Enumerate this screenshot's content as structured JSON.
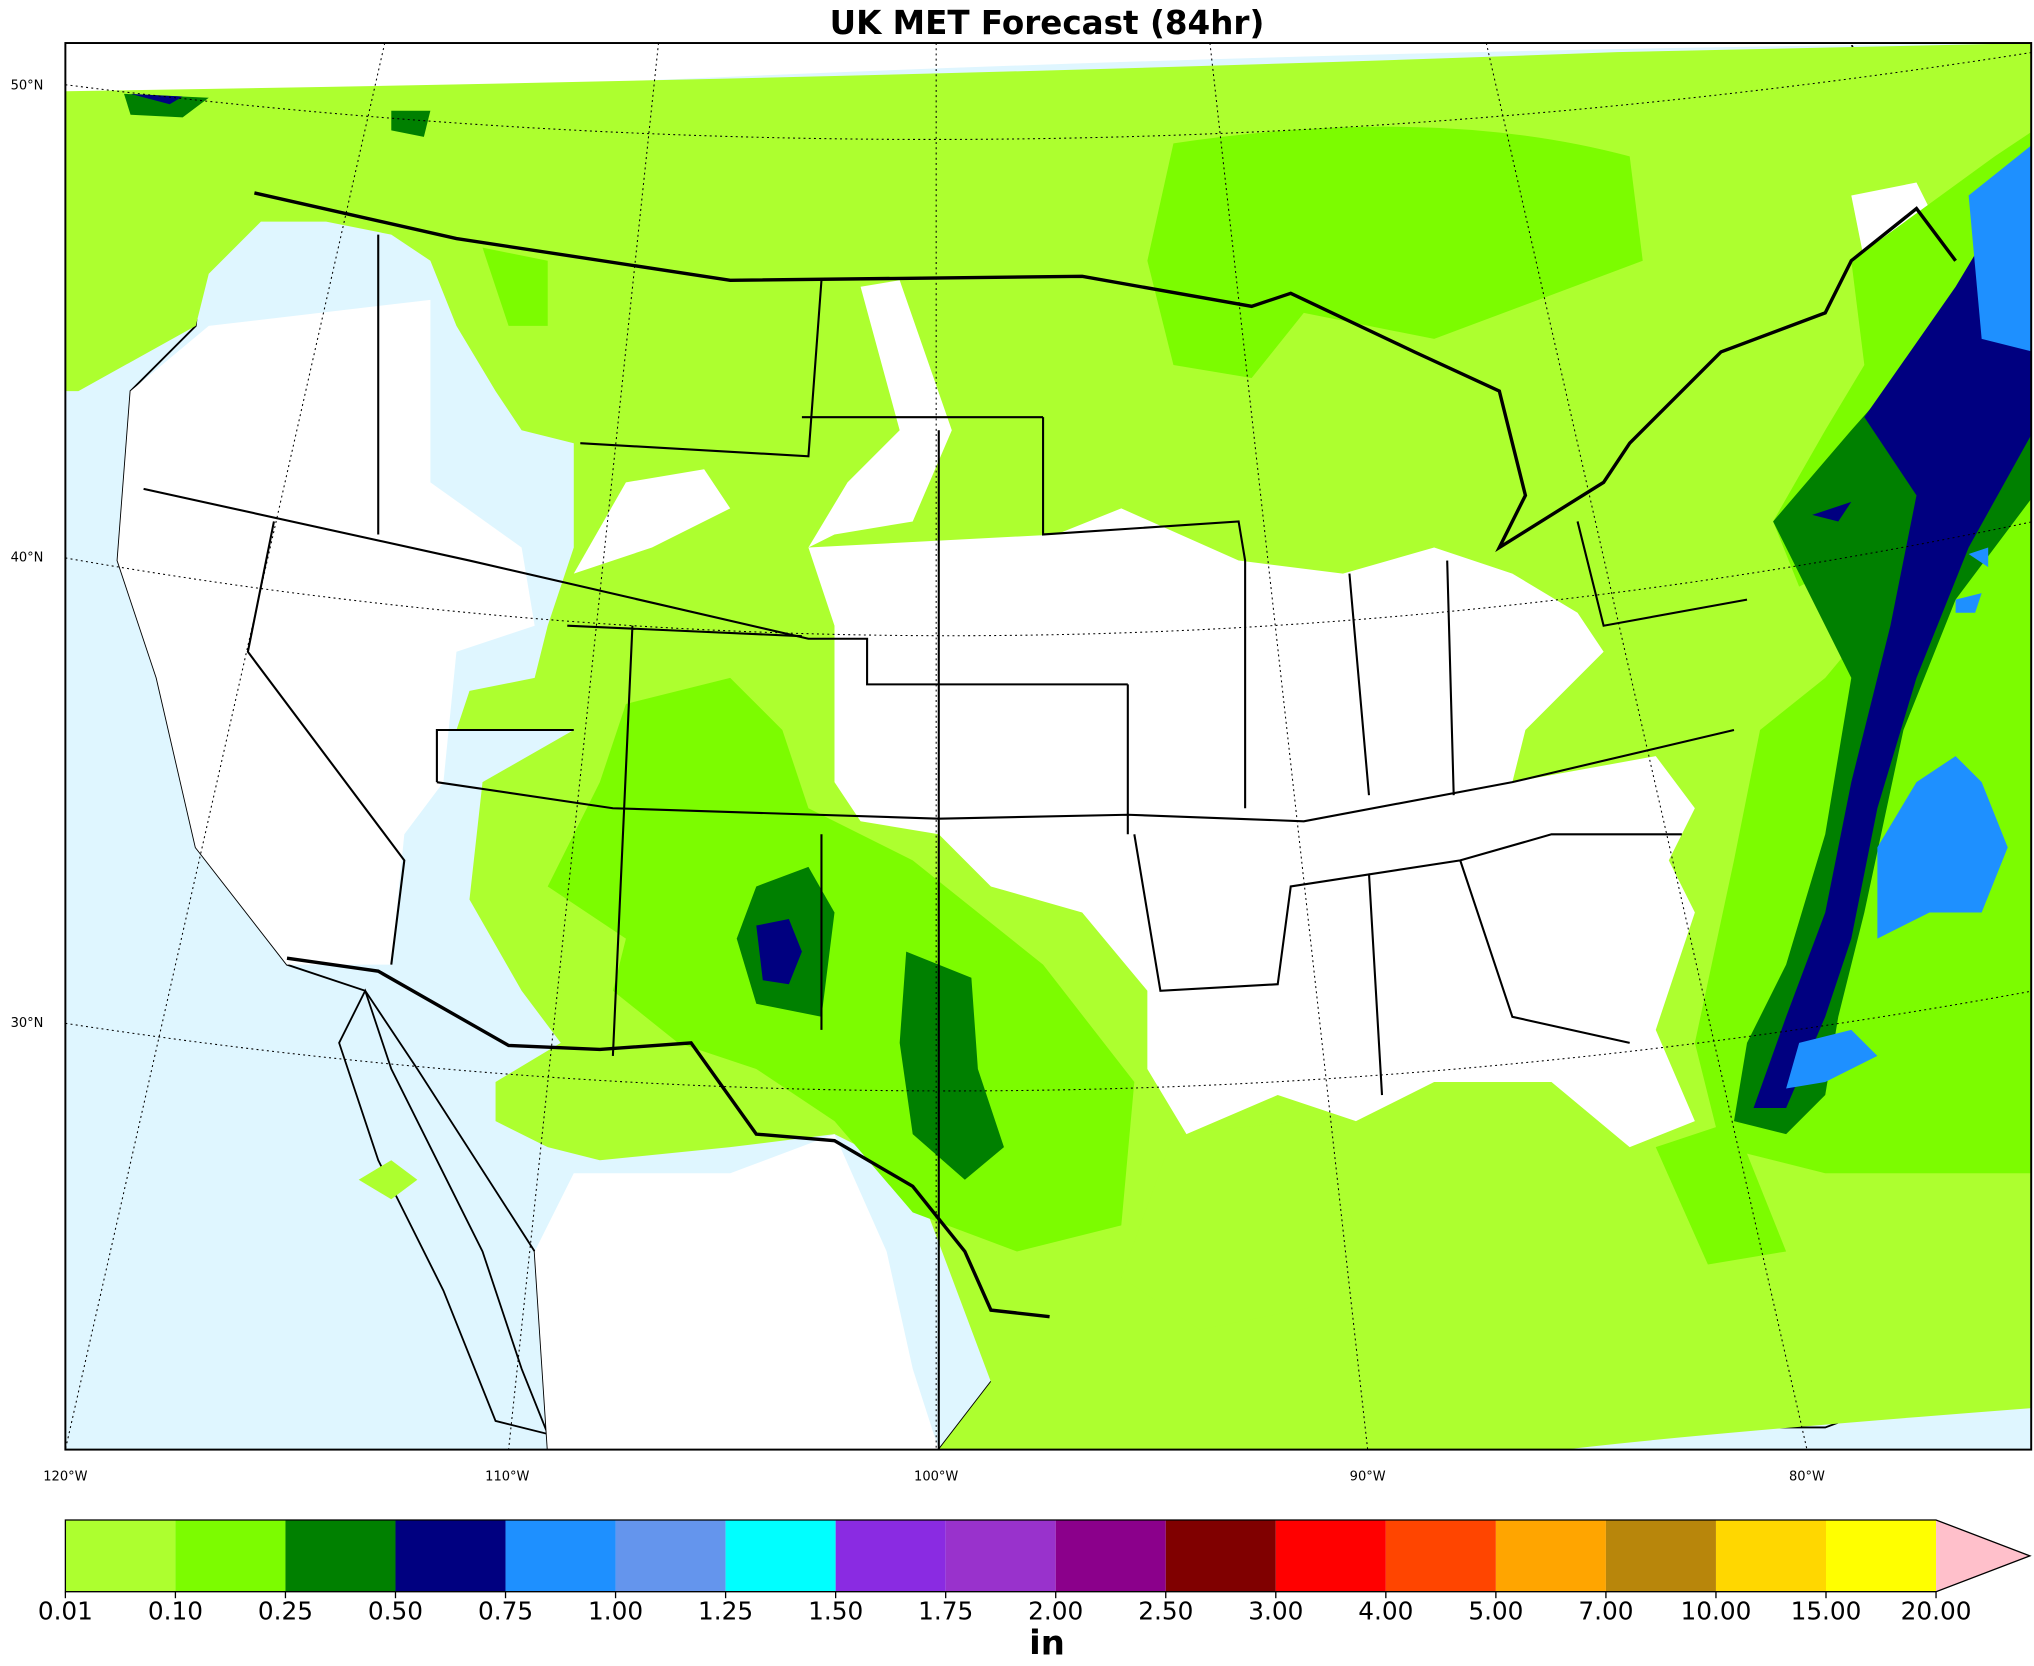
{
  "title": "UK MET Forecast (84hr)",
  "map": {
    "lat_labels": [
      "50°N",
      "40°N",
      "30°N"
    ],
    "lon_labels": [
      "120°W",
      "110°W",
      "100°W",
      "90°W",
      "80°W"
    ]
  },
  "colorbar": {
    "unit": "in",
    "bounds": [
      "0.01",
      "0.10",
      "0.25",
      "0.50",
      "0.75",
      "1.00",
      "1.25",
      "1.50",
      "1.75",
      "2.00",
      "2.50",
      "3.00",
      "4.00",
      "5.00",
      "7.00",
      "10.00",
      "15.00",
      "20.00"
    ],
    "colors": [
      "#adff2f",
      "#7cfc00",
      "#008000",
      "#000080",
      "#1e90ff",
      "#6495ed",
      "#00ffff",
      "#8a2be2",
      "#9932cc",
      "#8b008b",
      "#800000",
      "#ff0000",
      "#ff4500",
      "#ffa500",
      "#b8860b",
      "#ffd700",
      "#ffff00"
    ],
    "extend_color": "#ffc0cb"
  }
}
